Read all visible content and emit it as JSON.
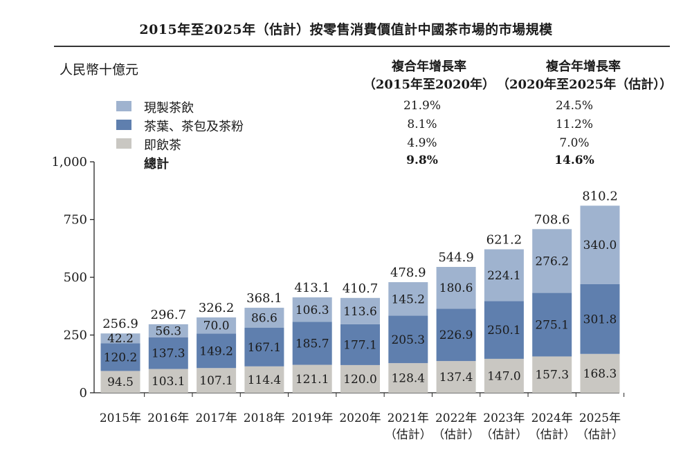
{
  "title": "2015年至2025年（估計）按零售消費價值計中國茶市場的市場規模",
  "unit_label": "人民幣十億元",
  "cagr_headers": [
    {
      "line1": "複合年增長率",
      "line2": "（2015年至2020年）"
    },
    {
      "line1": "複合年增長率",
      "line2": "（2020年至2025年（估計））"
    }
  ],
  "legend": [
    {
      "label": "現製茶飲",
      "color": "#9fb3cf",
      "cagr_2015_2020": "21.9%",
      "cagr_2020_2025": "24.5%"
    },
    {
      "label": "茶葉、茶包及茶粉",
      "color": "#5f7fae",
      "cagr_2015_2020": "8.1%",
      "cagr_2020_2025": "11.2%"
    },
    {
      "label": "即飲茶",
      "color": "#c9c7c2",
      "cagr_2015_2020": "4.9%",
      "cagr_2020_2025": "7.0%"
    },
    {
      "label": "總計",
      "color": "",
      "cagr_2015_2020": "9.8%",
      "cagr_2020_2025": "14.6%"
    }
  ],
  "chart_data": {
    "type": "bar",
    "stacked": true,
    "categories": [
      {
        "line1": "2015年",
        "line2": ""
      },
      {
        "line1": "2016年",
        "line2": ""
      },
      {
        "line1": "2017年",
        "line2": ""
      },
      {
        "line1": "2018年",
        "line2": ""
      },
      {
        "line1": "2019年",
        "line2": ""
      },
      {
        "line1": "2020年",
        "line2": ""
      },
      {
        "line1": "2021年",
        "line2": "（估計）"
      },
      {
        "line1": "2022年",
        "line2": "（估計）"
      },
      {
        "line1": "2023年",
        "line2": "（估計）"
      },
      {
        "line1": "2024年",
        "line2": "（估計）"
      },
      {
        "line1": "2025年",
        "line2": "（估計）"
      }
    ],
    "series": [
      {
        "name": "即飲茶",
        "values": [
          94.5,
          103.1,
          107.1,
          114.4,
          121.1,
          120.0,
          128.4,
          137.4,
          147.0,
          157.3,
          168.3
        ]
      },
      {
        "name": "茶葉、茶包及茶粉",
        "values": [
          120.2,
          137.3,
          149.2,
          167.1,
          185.7,
          177.1,
          205.3,
          226.9,
          250.1,
          275.1,
          301.8
        ]
      },
      {
        "name": "現製茶飲",
        "values": [
          42.2,
          56.3,
          70.0,
          86.6,
          106.3,
          113.6,
          145.2,
          180.6,
          224.1,
          276.2,
          340.0
        ]
      }
    ],
    "totals": [
      256.9,
      296.7,
      326.2,
      368.1,
      413.1,
      410.7,
      478.9,
      544.9,
      621.2,
      708.6,
      810.2
    ],
    "ylim": [
      0,
      1000
    ],
    "yticks": [
      "0",
      "250",
      "500",
      "750",
      "1,000"
    ],
    "ytick_values": [
      0,
      250,
      500,
      750,
      1000
    ]
  }
}
